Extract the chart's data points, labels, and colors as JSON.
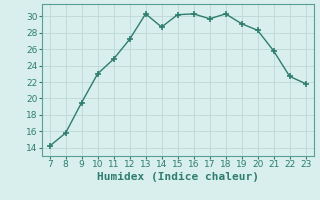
{
  "x": [
    7,
    8,
    9,
    10,
    11,
    12,
    13,
    14,
    15,
    16,
    17,
    18,
    19,
    20,
    21,
    22,
    23
  ],
  "y": [
    14.2,
    15.8,
    19.5,
    23.0,
    24.8,
    27.2,
    30.3,
    28.7,
    30.2,
    30.3,
    29.7,
    30.3,
    29.1,
    28.3,
    25.8,
    22.7,
    21.8
  ],
  "xlabel": "Humidex (Indice chaleur)",
  "ylim": [
    13,
    31.5
  ],
  "xlim": [
    6.5,
    23.5
  ],
  "yticks": [
    14,
    16,
    18,
    20,
    22,
    24,
    26,
    28,
    30
  ],
  "xticks": [
    7,
    8,
    9,
    10,
    11,
    12,
    13,
    14,
    15,
    16,
    17,
    18,
    19,
    20,
    21,
    22,
    23
  ],
  "line_color": "#2e7d6e",
  "marker": "+",
  "marker_size": 5,
  "background_color": "#d8efed",
  "grid_color": "#c0dbd8",
  "tick_label_fontsize": 6.5,
  "xlabel_fontsize": 8,
  "line_width": 1.0
}
